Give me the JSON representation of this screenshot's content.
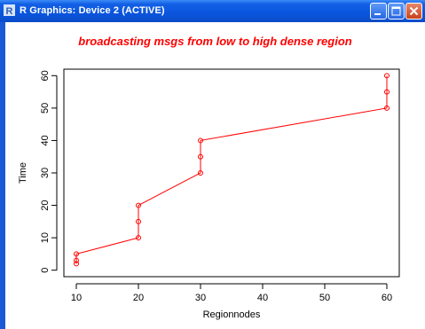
{
  "window": {
    "title": "R Graphics: Device 2 (ACTIVE)",
    "app_icon": "r-logo-icon",
    "buttons": [
      {
        "name": "minimize-button",
        "icon": "minimize-icon"
      },
      {
        "name": "maximize-button",
        "icon": "maximize-icon"
      },
      {
        "name": "close-button",
        "icon": "close-icon"
      }
    ]
  },
  "colors": {
    "series": "#ff0000",
    "axis": "#000000",
    "titlebar": "#0a4ed8"
  },
  "chart_data": {
    "type": "line",
    "title": "broadcasting msgs from low to high dense region",
    "xlabel": "Regionnodes",
    "ylabel": "Time",
    "xlim": [
      8,
      62
    ],
    "ylim": [
      -2,
      62
    ],
    "xticks": [
      10,
      20,
      30,
      40,
      50,
      60
    ],
    "yticks": [
      0,
      10,
      20,
      30,
      40,
      50,
      60
    ],
    "grid": false,
    "markers": "open-circle",
    "x": [
      10,
      10,
      10,
      20,
      20,
      20,
      30,
      30,
      30,
      60,
      60,
      60
    ],
    "y": [
      2,
      3,
      5,
      10,
      15,
      20,
      30,
      35,
      40,
      50,
      55,
      60
    ]
  }
}
